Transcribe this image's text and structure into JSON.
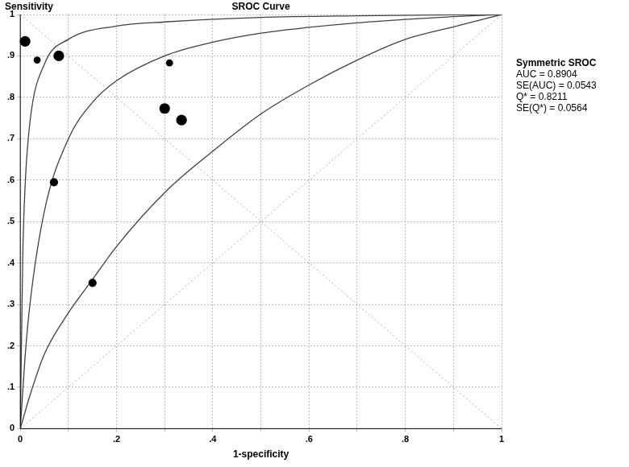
{
  "chart_data": {
    "type": "scatter",
    "title": "SROC Curve",
    "y_label": "Sensitivity",
    "x_label": "1-specificity",
    "annotations": [
      "Symmetric SROC",
      "AUC = 0.8904",
      "SE(AUC) = 0.0543",
      "Q* = 0.8211",
      "SE(Q*) = 0.0564"
    ],
    "xlim": [
      0,
      1
    ],
    "ylim": [
      0,
      1
    ],
    "xticks": [
      0,
      {
        "value": 0.2,
        "label": ".2"
      },
      {
        "value": 0.4,
        "label": ".4"
      },
      {
        "value": 0.6,
        "label": ".6"
      },
      {
        "value": 0.8,
        "label": ".8"
      },
      1
    ],
    "yticks": [
      0,
      {
        "value": 0.1,
        "label": ".1"
      },
      {
        "value": 0.2,
        "label": ".2"
      },
      {
        "value": 0.3,
        "label": ".3"
      },
      {
        "value": 0.4,
        "label": ".4"
      },
      {
        "value": 0.5,
        "label": ".5"
      },
      {
        "value": 0.6,
        "label": ".6"
      },
      {
        "value": 0.7,
        "label": ".7"
      },
      {
        "value": 0.8,
        "label": ".8"
      },
      {
        "value": 0.9,
        "label": ".9"
      },
      1
    ],
    "grid": true,
    "series": [
      {
        "type": "line",
        "line_style": "dotted",
        "color": "#b0b0b0",
        "x": [
          0,
          1
        ],
        "y": [
          0,
          1
        ]
      },
      {
        "type": "line",
        "line_style": "dotted",
        "color": "#b0b0b0",
        "x": [
          0,
          1
        ],
        "y": [
          1,
          0
        ]
      },
      {
        "type": "line",
        "line_style": "solid",
        "color": "#404040",
        "x": [
          0,
          0.005,
          0.01,
          0.02,
          0.05,
          0.1,
          0.2,
          0.3,
          0.5,
          0.7,
          1
        ],
        "y": [
          0,
          0.41,
          0.586,
          0.74,
          0.88,
          0.94,
          0.972,
          0.982,
          0.993,
          0.997,
          1
        ]
      },
      {
        "type": "line",
        "line_style": "solid",
        "color": "#404040",
        "x": [
          0,
          0.01,
          0.02,
          0.05,
          0.1,
          0.15,
          0.2,
          0.3,
          0.4,
          0.5,
          0.6,
          0.7,
          0.8,
          0.9,
          1
        ],
        "y": [
          0,
          0.175,
          0.3,
          0.525,
          0.7,
          0.788,
          0.84,
          0.9,
          0.933,
          0.955,
          0.969,
          0.98,
          0.988,
          0.995,
          1
        ]
      },
      {
        "type": "line",
        "line_style": "solid",
        "color": "#404040",
        "x": [
          0,
          0.02,
          0.05,
          0.1,
          0.15,
          0.2,
          0.3,
          0.4,
          0.5,
          0.6,
          0.7,
          0.8,
          0.9,
          1
        ],
        "y": [
          0,
          0.08,
          0.18,
          0.28,
          0.36,
          0.44,
          0.57,
          0.67,
          0.76,
          0.83,
          0.89,
          0.94,
          0.97,
          1
        ]
      },
      {
        "type": "scatter",
        "marker": "circle",
        "color": "#000000",
        "x": [
          0.01,
          0.035,
          0.08,
          0.31,
          0.3,
          0.335,
          0.07,
          0.15
        ],
        "y": [
          0.935,
          0.89,
          0.9,
          0.883,
          0.773,
          0.745,
          0.595,
          0.352
        ],
        "sizes": [
          3,
          2,
          3,
          2,
          3,
          3,
          2.3,
          2.3
        ]
      }
    ]
  }
}
